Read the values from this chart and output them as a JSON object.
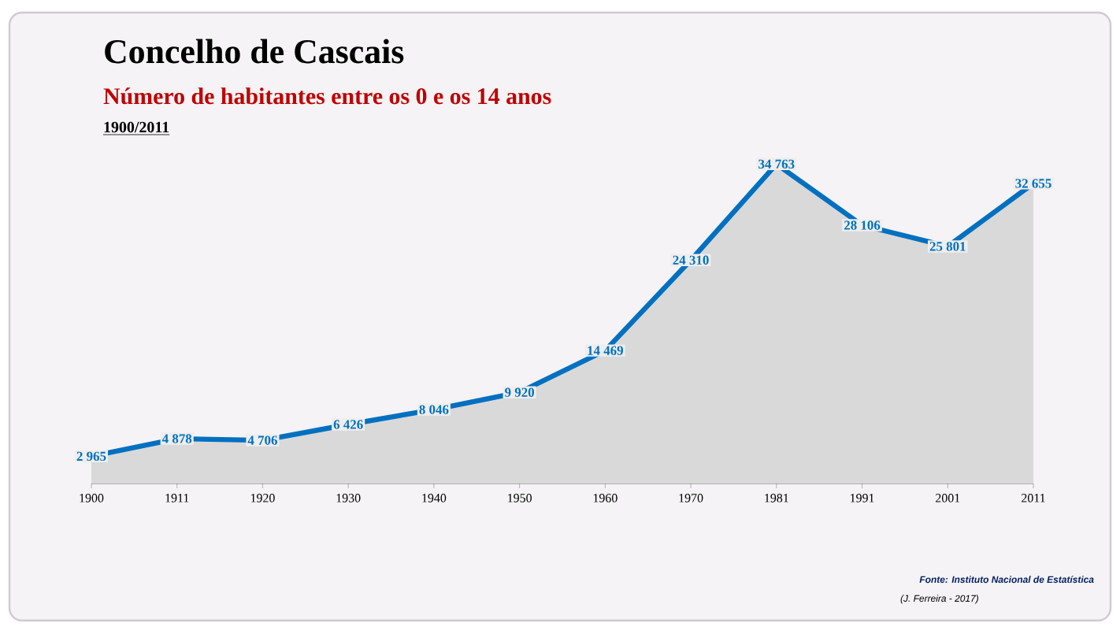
{
  "chart_data": {
    "type": "area",
    "title": "Concelho de Cascais",
    "subtitle": "Número de habitantes entre os 0 e os 14 anos",
    "categories": [
      "1900",
      "1911",
      "1920",
      "1930",
      "1940",
      "1950",
      "1960",
      "1970",
      "1981",
      "1991",
      "2001",
      "2011"
    ],
    "series": [
      {
        "color": "#0070c0",
        "values": [
          2965,
          4878,
          4706,
          6426,
          8046,
          9920,
          14469,
          24310,
          34763,
          28106,
          25801,
          32655
        ],
        "value_labels": [
          "2 965",
          "4 878",
          "4 706",
          "6 426",
          "8 046",
          "9 920",
          "14 469",
          "24 310",
          "34 763",
          "28 106",
          "25 801",
          "32 655"
        ]
      }
    ],
    "annotations": [
      "1900/2011",
      "Fonte: Instituto Nacional de Estatística",
      "(J. Ferreira - 2017)"
    ],
    "line_style": "solid"
  }
}
